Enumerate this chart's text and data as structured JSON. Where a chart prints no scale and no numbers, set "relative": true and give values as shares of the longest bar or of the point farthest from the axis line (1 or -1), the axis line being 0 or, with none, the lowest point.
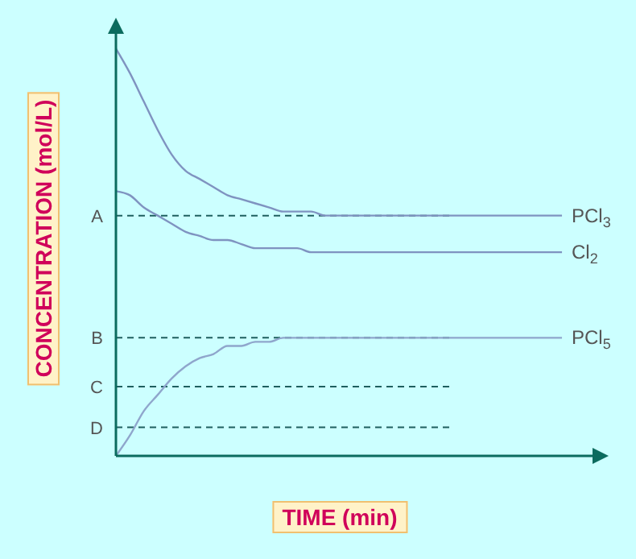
{
  "chart_data": {
    "type": "line",
    "relative": true,
    "xlabel": "TIME (min)",
    "ylabel": "CONCENTRATION (mol/L)",
    "categories": [
      null,
      null,
      null,
      null,
      null,
      null,
      null,
      null,
      null,
      null,
      null,
      null,
      null,
      null,
      null,
      null,
      null,
      null,
      null,
      null,
      null,
      null,
      null,
      null,
      null,
      null,
      null,
      null,
      null,
      null,
      null,
      null,
      null,
      null,
      null,
      null
    ],
    "series": [
      {
        "name": "PCl$_{3}$",
        "color": "#7f93c0",
        "values": [
          1.0,
          0.94,
          0.87,
          0.8,
          0.74,
          0.7,
          0.68,
          0.66,
          0.64,
          0.63,
          0.62,
          0.61,
          0.6,
          0.6,
          0.6,
          0.59,
          0.59,
          0.59,
          0.59,
          0.59,
          0.59,
          0.59,
          0.59,
          0.59,
          0.59,
          0.59,
          0.59,
          0.59,
          0.59,
          0.59,
          0.59,
          0.59,
          0.59,
          null,
          null,
          null
        ]
      },
      {
        "name": "Cl$_{2}$",
        "color": "#7f93c0",
        "values": [
          0.65,
          0.64,
          0.61,
          0.59,
          0.57,
          0.55,
          0.54,
          0.53,
          0.53,
          0.52,
          0.51,
          0.51,
          0.51,
          0.51,
          0.5,
          0.5,
          0.5,
          0.5,
          0.5,
          0.5,
          0.5,
          0.5,
          0.5,
          0.5,
          0.5,
          0.5,
          0.5,
          0.5,
          0.5,
          0.5,
          0.5,
          0.5,
          0.5,
          null,
          null,
          null
        ]
      },
      {
        "name": "PCl$_{5}$",
        "color": "#8fa6cc",
        "values": [
          0.0,
          0.05,
          0.11,
          0.15,
          0.19,
          0.22,
          0.24,
          0.25,
          0.27,
          0.27,
          0.28,
          0.28,
          0.29,
          0.29,
          0.29,
          0.29,
          0.29,
          0.29,
          0.29,
          0.29,
          0.29,
          0.29,
          0.29,
          0.29,
          0.29,
          0.29,
          0.29,
          0.29,
          0.29,
          0.29,
          0.29,
          0.29,
          0.29,
          null,
          null,
          null
        ]
      }
    ],
    "ref_lines": [
      {
        "axis": "y",
        "value": 0.59,
        "label": "A",
        "color": "#1f5f5f",
        "line_style": "dashed"
      },
      {
        "axis": "y",
        "value": 0.29,
        "label": "B",
        "color": "#1f5f5f",
        "line_style": "dashed"
      },
      {
        "axis": "y",
        "value": 0.17,
        "label": "C",
        "color": "#1f5f5f",
        "line_style": "dashed"
      },
      {
        "axis": "y",
        "value": 0.07,
        "label": "D",
        "color": "#1f5f5f",
        "line_style": "dashed"
      }
    ],
    "grid": false,
    "legend": false,
    "marker": "none",
    "line_style": "solid"
  }
}
